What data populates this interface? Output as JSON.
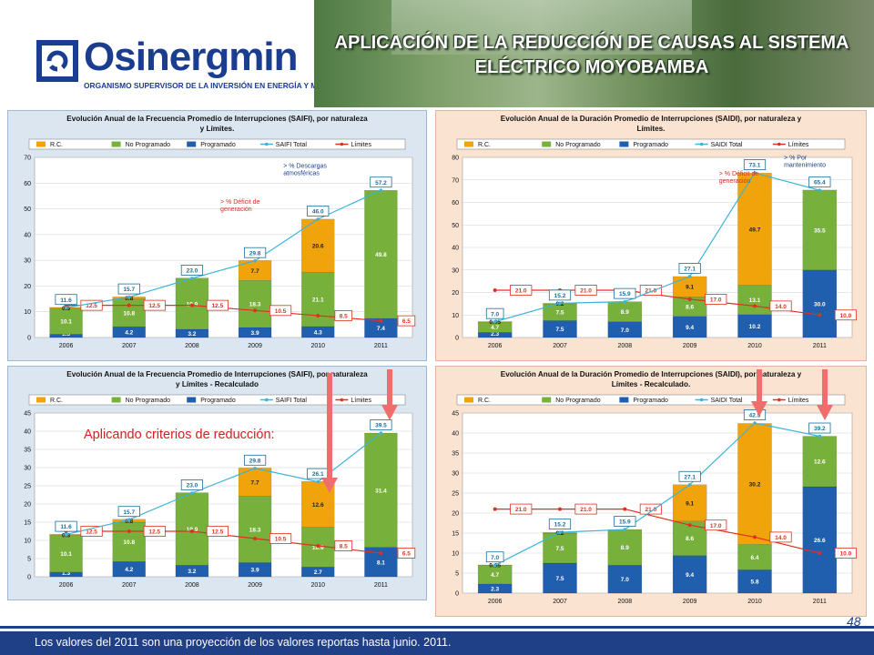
{
  "header": {
    "logo_name": "Osinergmin",
    "logo_subtitle": "ORGANISMO SUPERVISOR DE LA INVERSIÓN EN ENERGÍA Y MINERÍA",
    "title_line1": "APLICACIÓN DE LA REDUCCIÓN DE CAUSAS AL SISTEMA",
    "title_line2": "ELÉCTRICO MOYOBAMBA"
  },
  "annotation_main": "Aplicando criterios de reducción:",
  "footnote": "Los valores del 2011 son una proyección de los valores reportas  hasta  junio. 2011.",
  "page_number": "48",
  "colors": {
    "rc": "#f0a30a",
    "no_programado": "#77b13c",
    "programado": "#1f5fae",
    "total_line": "#3db4d8",
    "limit_line": "#e03020",
    "panel_left_bg": "#dbe6f1",
    "panel_right_bg": "#fbe3d2",
    "arrow": "#f06d6d"
  },
  "chart_data": [
    {
      "type": "bar",
      "title_line1": "Evolución Anual de la Frecuencia Promedio de Interrupciones (SAIFI), por naturaleza",
      "title_line2": "y Límites.",
      "legend": [
        "R.C.",
        "No Programado",
        "Programado",
        "SAIFI Total",
        "Límites"
      ],
      "categories": [
        "2006",
        "2007",
        "2008",
        "2009",
        "2010",
        "2011"
      ],
      "ylim": [
        0,
        70
      ],
      "yticks": [
        0,
        10,
        20,
        30,
        40,
        50,
        60,
        70
      ],
      "series": [
        {
          "name": "Programado",
          "values": [
            1.3,
            4.2,
            3.2,
            3.9,
            4.3,
            7.4
          ],
          "labels": [
            "1.3",
            "4.2",
            "3.2",
            "3.9",
            "4.3",
            "7.4"
          ]
        },
        {
          "name": "No Programado",
          "values": [
            10.1,
            10.8,
            19.9,
            18.3,
            21.1,
            49.8
          ],
          "labels": [
            "10.1",
            "10.8",
            "19.9",
            "18.3",
            "21.1",
            "49.8"
          ]
        },
        {
          "name": "R.C.",
          "values": [
            0.3,
            0.8,
            0,
            7.7,
            20.6,
            0
          ],
          "labels": [
            "0.3",
            "0.8",
            "",
            "7.7",
            "20.6",
            ""
          ]
        },
        {
          "name": "SAIFI Total",
          "values": [
            11.6,
            15.7,
            23.0,
            29.8,
            46.0,
            57.2
          ],
          "labels": [
            "11.6",
            "15.7",
            "23.0",
            "29.8",
            "46.0",
            "57.2"
          ]
        },
        {
          "name": "Límites",
          "values": [
            12.5,
            12.5,
            12.5,
            10.5,
            8.5,
            6.5
          ],
          "labels": [
            "12.5",
            "12.5",
            "12.5",
            "10.5",
            "8.5",
            "6.5"
          ]
        }
      ],
      "notes": [
        {
          "text": [
            "> % Déficit de",
            "generación"
          ],
          "x": "2009",
          "y": 52
        },
        {
          "text": [
            "> % Descargas",
            "atmosféricas"
          ],
          "x": "2010",
          "y": 66
        }
      ]
    },
    {
      "type": "bar",
      "title_line1": "Evolución Anual de la Duración Promedio de Interrupciones (SAIDI), por naturaleza y",
      "title_line2": "Límites.",
      "legend": [
        "R.C.",
        "No Programado",
        "Programado",
        "SAIDI Total",
        "Límites"
      ],
      "categories": [
        "2006",
        "2007",
        "2008",
        "2009",
        "2010",
        "2011"
      ],
      "ylim": [
        0,
        80
      ],
      "yticks": [
        0,
        10,
        20,
        30,
        40,
        50,
        60,
        70,
        80
      ],
      "series": [
        {
          "name": "Programado",
          "values": [
            2.3,
            7.5,
            7.0,
            9.4,
            10.2,
            30.0
          ],
          "labels": [
            "2.3",
            "7.5",
            "7.0",
            "9.4",
            "10.2",
            "30.0"
          ]
        },
        {
          "name": "No Programado",
          "values": [
            4.7,
            7.5,
            8.9,
            8.6,
            13.1,
            35.5
          ],
          "labels": [
            "4.7",
            "7.5",
            "8.9",
            "8.6",
            "13.1",
            "35.5"
          ]
        },
        {
          "name": "R.C.",
          "values": [
            0.05,
            0.2,
            0,
            9.1,
            49.7,
            0
          ],
          "labels": [
            "0.05",
            "0.2",
            "",
            "9.1",
            "49.7",
            ""
          ]
        },
        {
          "name": "SAIDI Total",
          "values": [
            7.0,
            15.2,
            15.9,
            27.1,
            73.1,
            65.4
          ],
          "labels": [
            "7.0",
            "15.2",
            "15.9",
            "27.1",
            "73.1",
            "65.4"
          ]
        },
        {
          "name": "Límites",
          "values": [
            21.0,
            21.0,
            21.0,
            17.0,
            14.0,
            10.0
          ],
          "labels": [
            "21.0",
            "21.0",
            "21.0",
            "17.0",
            "14.0",
            "10.0"
          ]
        }
      ],
      "notes": [
        {
          "text": [
            "> % Déficit de",
            "generación"
          ],
          "x": "2010",
          "y": 72
        },
        {
          "text": [
            "> % Por",
            "mantenimiento"
          ],
          "x": "2011",
          "y": 79
        }
      ]
    },
    {
      "type": "bar",
      "title_line1": "Evolución Anual de la Frecuencia Promedio de Interrupciones (SAIFI), por naturaleza",
      "title_line2": "y Límites - Recalculado",
      "legend": [
        "R.C.",
        "No Programado",
        "Programado",
        "SAIFI Total",
        "Límites"
      ],
      "categories": [
        "2006",
        "2007",
        "2008",
        "2009",
        "2010",
        "2011"
      ],
      "ylim": [
        0,
        45
      ],
      "yticks": [
        0,
        5,
        10,
        15,
        20,
        25,
        30,
        35,
        40,
        45
      ],
      "series": [
        {
          "name": "Programado",
          "values": [
            1.3,
            4.2,
            3.2,
            3.9,
            2.7,
            8.1
          ],
          "labels": [
            "1.3",
            "4.2",
            "3.2",
            "3.9",
            "2.7",
            "8.1"
          ]
        },
        {
          "name": "No Programado",
          "values": [
            10.1,
            10.8,
            19.9,
            18.3,
            10.9,
            31.4
          ],
          "labels": [
            "10.1",
            "10.8",
            "19.9",
            "18.3",
            "10.9",
            "31.4"
          ]
        },
        {
          "name": "R.C.",
          "values": [
            0.3,
            0.8,
            0,
            7.7,
            12.6,
            0
          ],
          "labels": [
            "0.3",
            "0.8",
            "",
            "7.7",
            "12.6",
            ""
          ]
        },
        {
          "name": "SAIFI Total",
          "values": [
            11.6,
            15.7,
            23.0,
            29.8,
            26.1,
            39.5
          ],
          "labels": [
            "11.6",
            "15.7",
            "23.0",
            "29.8",
            "26.1",
            "39.5"
          ]
        },
        {
          "name": "Límites",
          "values": [
            12.5,
            12.5,
            12.5,
            10.5,
            8.5,
            6.5
          ],
          "labels": [
            "12.5",
            "12.5",
            "12.5",
            "10.5",
            "8.5",
            "6.5"
          ]
        }
      ],
      "notes": []
    },
    {
      "type": "bar",
      "title_line1": "Evolución Anual de la Duración Promedio de Interrupciones (SAIDI), por naturaleza y",
      "title_line2": "Límites - Recalculado.",
      "legend": [
        "R.C.",
        "No Programado",
        "Programado",
        "SAIDI Total",
        "Límites"
      ],
      "categories": [
        "2006",
        "2007",
        "2008",
        "2009",
        "2010",
        "2011"
      ],
      "ylim": [
        0,
        45
      ],
      "yticks": [
        0,
        5,
        10,
        15,
        20,
        25,
        30,
        35,
        40,
        45
      ],
      "series": [
        {
          "name": "Programado",
          "values": [
            2.3,
            7.5,
            7.0,
            9.4,
            5.8,
            26.6
          ],
          "labels": [
            "2.3",
            "7.5",
            "7.0",
            "9.4",
            "5.8",
            "26.6"
          ]
        },
        {
          "name": "No Programado",
          "values": [
            4.7,
            7.5,
            8.9,
            8.6,
            6.4,
            12.6
          ],
          "labels": [
            "4.7",
            "7.5",
            "8.9",
            "8.6",
            "6.4",
            "12.6"
          ]
        },
        {
          "name": "R.C.",
          "values": [
            0.05,
            0.2,
            0,
            9.1,
            30.2,
            0
          ],
          "labels": [
            "0.05",
            "0.2",
            "",
            "9.1",
            "30.2",
            ""
          ]
        },
        {
          "name": "SAIDI Total",
          "values": [
            7.0,
            15.2,
            15.9,
            27.1,
            42.5,
            39.2
          ],
          "labels": [
            "7.0",
            "15.2",
            "15.9",
            "27.1",
            "42.5",
            "39.2"
          ]
        },
        {
          "name": "Límites",
          "values": [
            21.0,
            21.0,
            21.0,
            17.0,
            14.0,
            10.0
          ],
          "labels": [
            "21.0",
            "21.0",
            "21.0",
            "17.0",
            "14.0",
            "10.0"
          ]
        }
      ],
      "notes": []
    }
  ]
}
